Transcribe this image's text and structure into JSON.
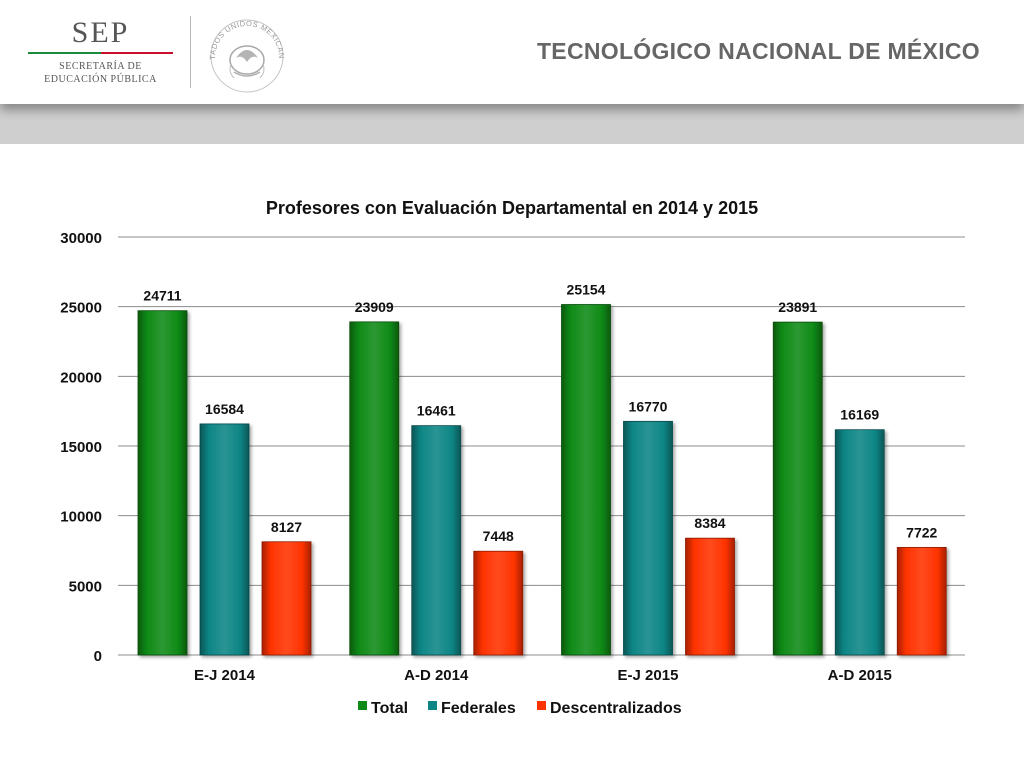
{
  "header": {
    "sep_logo": {
      "word": "SEP",
      "line1": "SECRETARÍA DE",
      "line2": "EDUCACIÓN PÚBLICA"
    },
    "seal": {
      "text": "ESTADOS UNIDOS MEXICANOS",
      "icon": "national-seal-icon"
    },
    "institution": "TECNOLÓGICO NACIONAL DE MÉXICO"
  },
  "colors": {
    "total": "#0f8a16",
    "federales": "#0d8585",
    "descentralizados": "#ff3300",
    "grid": "#8c8c8c",
    "header_band": "#cfcfcf"
  },
  "chart_data": {
    "type": "bar",
    "title": "Profesores con Evaluación Departamental en 2014 y 2015",
    "categories": [
      "E-J 2014",
      "A-D 2014",
      "E-J 2015",
      "A-D 2015"
    ],
    "series": [
      {
        "name": "Total",
        "values": [
          24711,
          23909,
          25154,
          23891
        ]
      },
      {
        "name": "Federales",
        "values": [
          16584,
          16461,
          16770,
          16169
        ]
      },
      {
        "name": "Descentralizados",
        "values": [
          8127,
          7448,
          8384,
          7722
        ]
      }
    ],
    "xlabel": "",
    "ylabel": "",
    "ylim": [
      0,
      30000
    ],
    "yticks": [
      0,
      5000,
      10000,
      15000,
      20000,
      25000,
      30000
    ],
    "grid": true,
    "legend": "bottom",
    "data_labels": true
  }
}
